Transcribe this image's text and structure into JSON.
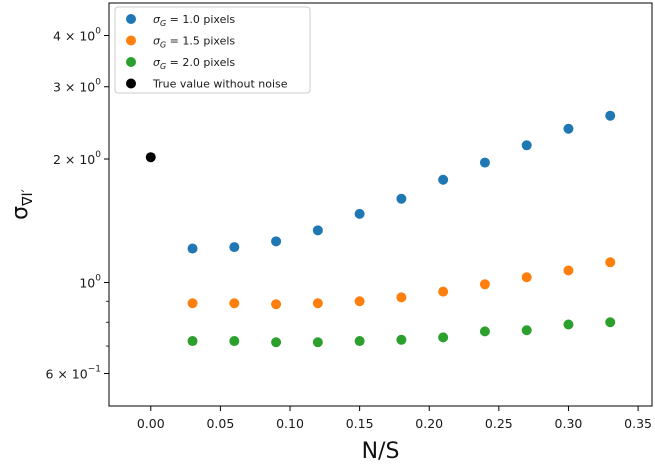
{
  "chart_data": {
    "type": "scatter",
    "xlabel": "N/S",
    "ylabel": "σ∇I′",
    "ylabel_main": "σ",
    "ylabel_sub": "∇I′",
    "xlim": [
      -0.03,
      0.36
    ],
    "ylim": [
      0.5,
      4.8
    ],
    "yscale": "log",
    "grid": false,
    "legend_position": "top-left",
    "x_ticks": [
      {
        "value": 0.0,
        "label": "0.00"
      },
      {
        "value": 0.05,
        "label": "0.05"
      },
      {
        "value": 0.1,
        "label": "0.10"
      },
      {
        "value": 0.15,
        "label": "0.15"
      },
      {
        "value": 0.2,
        "label": "0.20"
      },
      {
        "value": 0.25,
        "label": "0.25"
      },
      {
        "value": 0.3,
        "label": "0.30"
      },
      {
        "value": 0.35,
        "label": "0.35"
      }
    ],
    "y_ticks": [
      {
        "value": 4.0,
        "base": "4 × 10",
        "exp": "0"
      },
      {
        "value": 3.0,
        "base": "3 × 10",
        "exp": "0"
      },
      {
        "value": 2.0,
        "base": "2 × 10",
        "exp": "0"
      },
      {
        "value": 1.0,
        "base": "10",
        "exp": "0"
      },
      {
        "value": 0.6,
        "base": "6 × 10",
        "exp": "−1"
      }
    ],
    "y_minor_ticks": [
      0.7,
      0.8,
      0.9
    ],
    "series": [
      {
        "name": "σG = 1.0 pixels",
        "legend_sym": "σ",
        "legend_sub": "G",
        "legend_rest": " = 1.0 pixels",
        "color": "#1f77b4",
        "points": [
          [
            0.03,
            1.21
          ],
          [
            0.06,
            1.22
          ],
          [
            0.09,
            1.26
          ],
          [
            0.12,
            1.34
          ],
          [
            0.15,
            1.47
          ],
          [
            0.18,
            1.6
          ],
          [
            0.21,
            1.78
          ],
          [
            0.24,
            1.96
          ],
          [
            0.27,
            2.16
          ],
          [
            0.3,
            2.37
          ],
          [
            0.33,
            2.55
          ]
        ]
      },
      {
        "name": "σG = 1.5 pixels",
        "legend_sym": "σ",
        "legend_sub": "G",
        "legend_rest": " = 1.5 pixels",
        "color": "#ff7f0e",
        "points": [
          [
            0.03,
            0.89
          ],
          [
            0.06,
            0.89
          ],
          [
            0.09,
            0.885
          ],
          [
            0.12,
            0.89
          ],
          [
            0.15,
            0.9
          ],
          [
            0.18,
            0.92
          ],
          [
            0.21,
            0.95
          ],
          [
            0.24,
            0.99
          ],
          [
            0.27,
            1.03
          ],
          [
            0.3,
            1.07
          ],
          [
            0.33,
            1.12
          ]
        ]
      },
      {
        "name": "σG = 2.0 pixels",
        "legend_sym": "σ",
        "legend_sub": "G",
        "legend_rest": " = 2.0 pixels",
        "color": "#2ca02c",
        "points": [
          [
            0.03,
            0.72
          ],
          [
            0.06,
            0.72
          ],
          [
            0.09,
            0.715
          ],
          [
            0.12,
            0.715
          ],
          [
            0.15,
            0.72
          ],
          [
            0.18,
            0.725
          ],
          [
            0.21,
            0.735
          ],
          [
            0.24,
            0.76
          ],
          [
            0.27,
            0.765
          ],
          [
            0.3,
            0.79
          ],
          [
            0.33,
            0.8
          ]
        ]
      },
      {
        "name": "True value without noise",
        "legend_rest": "True value without noise",
        "color": "#000000",
        "points": [
          [
            0.0,
            2.02
          ]
        ]
      }
    ]
  }
}
